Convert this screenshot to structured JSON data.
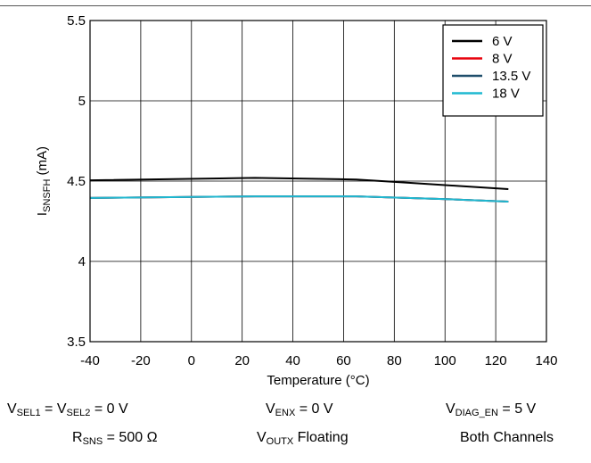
{
  "chart_data": {
    "type": "line",
    "xlabel": "Temperature (°C)",
    "ylabel_main": "I",
    "ylabel_sub": "SNSFH",
    "ylabel_unit": " (mA)",
    "xlim": [
      -40,
      140
    ],
    "ylim": [
      3.5,
      5.5
    ],
    "xticks": [
      -40,
      -20,
      0,
      20,
      40,
      60,
      80,
      100,
      120,
      140
    ],
    "yticks": [
      3.5,
      4,
      4.5,
      5,
      5.5
    ],
    "xtick_labels": [
      "-40",
      "-20",
      "0",
      "20",
      "40",
      "60",
      "80",
      "100",
      "120",
      "140"
    ],
    "ytick_labels": [
      "3.5",
      "4",
      "4.5",
      "5",
      "5.5"
    ],
    "grid": true,
    "legend_position": "top-right",
    "series": [
      {
        "name": "6 V",
        "color": "#000000",
        "x": [
          -40,
          25,
          65,
          85,
          105,
          125
        ],
        "y": [
          4.505,
          4.52,
          4.51,
          4.49,
          4.47,
          4.45
        ]
      },
      {
        "name": "8 V",
        "color": "#e8000b",
        "x": [
          -40,
          25,
          65,
          85,
          105,
          125
        ],
        "y": [
          4.395,
          4.405,
          4.405,
          4.395,
          4.385,
          4.372
        ]
      },
      {
        "name": "13.5 V",
        "color": "#1f4e6b",
        "x": [
          -40,
          25,
          65,
          85,
          105,
          125
        ],
        "y": [
          4.395,
          4.405,
          4.405,
          4.395,
          4.385,
          4.372
        ]
      },
      {
        "name": "18 V",
        "color": "#1fb8d0",
        "x": [
          -40,
          25,
          65,
          85,
          105,
          125
        ],
        "y": [
          4.395,
          4.405,
          4.405,
          4.395,
          4.385,
          4.372
        ]
      }
    ]
  },
  "conditions": {
    "vsel_main1": "V",
    "vsel_sub1": "SEL1",
    "vsel_eq": " = V",
    "vsel_sub2": "SEL2",
    "vsel_val": " = 0 V",
    "venx_main": "V",
    "venx_sub": "ENX",
    "venx_val": " = 0 V",
    "vdiag_main": "V",
    "vdiag_sub": "DIAG_EN",
    "vdiag_val": " = 5 V",
    "rsns_main": "R",
    "rsns_sub": "SNS",
    "rsns_val": " = 500 Ω",
    "voutx_main": "V",
    "voutx_sub": "OUTX",
    "voutx_val": " Floating",
    "channels": "Both Channels"
  }
}
